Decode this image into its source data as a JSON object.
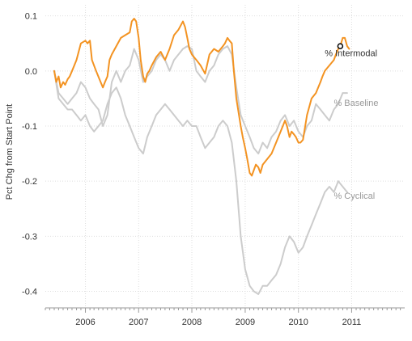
{
  "chart_data": {
    "type": "line",
    "title": "",
    "xlabel": "",
    "ylabel": "Pct Chg from Start Point",
    "xlim": [
      "2005-04-01",
      "2011-12-31"
    ],
    "ylim": [
      -0.43,
      0.12
    ],
    "x_ticks": [
      "2006",
      "2007",
      "2008",
      "2009",
      "2010",
      "2011"
    ],
    "x_tick_dates": [
      "2006-01-01",
      "2007-01-01",
      "2008-01-01",
      "2009-01-01",
      "2010-01-01",
      "2011-01-01"
    ],
    "y_ticks": [
      0.1,
      0.0,
      -0.1,
      -0.2,
      -0.3,
      -0.4
    ],
    "y_tick_labels": [
      "0.1",
      "0.0",
      "-0.1",
      "-0.2",
      "-0.3",
      "-0.4"
    ],
    "grid": true,
    "legend": "none",
    "highlight_point": {
      "series": "% Intermodal",
      "x": "2010-10-15",
      "y": 0.045
    },
    "colors": {
      "% Intermodal": "#f39322",
      "% Baseline": "#cccccc",
      "% Cyclical": "#cccccc",
      "grid": "#dddddd",
      "axis": "#999999"
    },
    "series": [
      {
        "name": "% Intermodal",
        "label_text": "% Intermodal",
        "label_anchor": {
          "x": "2010-07-01",
          "y": 0.027
        },
        "label_color": "#333333",
        "x": [
          "2005-06-01",
          "2005-06-15",
          "2005-07-01",
          "2005-07-15",
          "2005-08-01",
          "2005-08-15",
          "2005-09-01",
          "2005-09-15",
          "2005-10-01",
          "2005-11-01",
          "2005-12-01",
          "2006-01-01",
          "2006-01-15",
          "2006-02-01",
          "2006-02-15",
          "2006-03-15",
          "2006-04-15",
          "2006-05-01",
          "2006-05-15",
          "2006-06-01",
          "2006-06-15",
          "2006-07-01",
          "2006-08-01",
          "2006-09-01",
          "2006-10-01",
          "2006-11-01",
          "2006-11-15",
          "2006-12-01",
          "2006-12-15",
          "2007-01-01",
          "2007-01-15",
          "2007-02-01",
          "2007-02-15",
          "2007-03-01",
          "2007-03-15",
          "2007-04-01",
          "2007-05-01",
          "2007-06-01",
          "2007-07-01",
          "2007-08-01",
          "2007-09-01",
          "2007-10-01",
          "2007-11-01",
          "2007-11-15",
          "2007-12-01",
          "2007-12-15",
          "2008-01-01",
          "2008-02-01",
          "2008-03-01",
          "2008-04-01",
          "2008-05-01",
          "2008-06-01",
          "2008-07-01",
          "2008-08-01",
          "2008-08-15",
          "2008-09-01",
          "2008-09-15",
          "2008-10-01",
          "2008-10-15",
          "2008-11-01",
          "2008-12-01",
          "2008-12-15",
          "2009-01-01",
          "2009-01-15",
          "2009-02-01",
          "2009-02-15",
          "2009-03-01",
          "2009-03-15",
          "2009-04-01",
          "2009-04-15",
          "2009-05-01",
          "2009-06-01",
          "2009-07-01",
          "2009-08-01",
          "2009-09-01",
          "2009-10-01",
          "2009-10-15",
          "2009-11-01",
          "2009-11-15",
          "2009-12-01",
          "2009-12-15",
          "2010-01-01",
          "2010-01-15",
          "2010-02-01",
          "2010-03-01",
          "2010-04-01",
          "2010-05-01",
          "2010-06-01",
          "2010-06-15",
          "2010-07-01",
          "2010-08-01",
          "2010-09-01",
          "2010-09-15",
          "2010-10-01",
          "2010-10-15",
          "2010-11-01",
          "2010-11-15",
          "2010-12-01",
          "2010-12-15"
        ],
        "values": [
          0.0,
          -0.02,
          -0.01,
          -0.03,
          -0.02,
          -0.025,
          -0.015,
          -0.01,
          0.0,
          0.02,
          0.05,
          0.055,
          0.05,
          0.055,
          0.02,
          0.0,
          -0.02,
          -0.03,
          -0.02,
          -0.01,
          0.02,
          0.03,
          0.045,
          0.06,
          0.065,
          0.07,
          0.09,
          0.095,
          0.09,
          0.06,
          0.02,
          -0.01,
          -0.02,
          -0.005,
          0.0,
          0.01,
          0.025,
          0.035,
          0.02,
          0.04,
          0.065,
          0.075,
          0.09,
          0.08,
          0.06,
          0.04,
          0.03,
          0.02,
          0.01,
          -0.005,
          0.03,
          0.04,
          0.035,
          0.045,
          0.05,
          0.06,
          0.055,
          0.05,
          0.0,
          -0.05,
          -0.1,
          -0.12,
          -0.14,
          -0.16,
          -0.185,
          -0.19,
          -0.18,
          -0.17,
          -0.175,
          -0.185,
          -0.17,
          -0.16,
          -0.15,
          -0.13,
          -0.11,
          -0.09,
          -0.1,
          -0.12,
          -0.11,
          -0.115,
          -0.12,
          -0.13,
          -0.13,
          -0.125,
          -0.08,
          -0.05,
          -0.04,
          -0.02,
          -0.01,
          0.0,
          0.01,
          0.02,
          0.03,
          0.04,
          0.045,
          0.06,
          0.06,
          0.045,
          0.04
        ]
      },
      {
        "name": "% Baseline",
        "label_text": "% Baseline",
        "label_anchor": {
          "x": "2010-09-01",
          "y": -0.063
        },
        "label_color": "#999999",
        "x": [
          "2005-06-01",
          "2005-07-01",
          "2005-08-01",
          "2005-09-01",
          "2005-10-01",
          "2005-11-01",
          "2005-12-01",
          "2006-01-01",
          "2006-02-01",
          "2006-03-01",
          "2006-04-01",
          "2006-05-01",
          "2006-06-01",
          "2006-07-01",
          "2006-08-01",
          "2006-09-01",
          "2006-10-01",
          "2006-11-01",
          "2006-12-01",
          "2007-01-01",
          "2007-02-01",
          "2007-03-01",
          "2007-04-01",
          "2007-05-01",
          "2007-06-01",
          "2007-07-01",
          "2007-08-01",
          "2007-09-01",
          "2007-10-01",
          "2007-11-01",
          "2007-12-01",
          "2008-01-01",
          "2008-02-01",
          "2008-03-01",
          "2008-04-01",
          "2008-05-01",
          "2008-06-01",
          "2008-07-01",
          "2008-08-01",
          "2008-09-01",
          "2008-10-01",
          "2008-11-01",
          "2008-12-01",
          "2009-01-01",
          "2009-02-01",
          "2009-03-01",
          "2009-04-01",
          "2009-05-01",
          "2009-06-01",
          "2009-07-01",
          "2009-08-01",
          "2009-09-01",
          "2009-10-01",
          "2009-11-01",
          "2009-12-01",
          "2010-01-01",
          "2010-02-01",
          "2010-03-01",
          "2010-04-01",
          "2010-05-01",
          "2010-06-01",
          "2010-07-01",
          "2010-08-01",
          "2010-09-01",
          "2010-10-01",
          "2010-11-01",
          "2010-12-01"
        ],
        "values": [
          0.0,
          -0.04,
          -0.05,
          -0.06,
          -0.05,
          -0.04,
          -0.02,
          -0.03,
          -0.05,
          -0.06,
          -0.07,
          -0.1,
          -0.08,
          -0.02,
          0.0,
          -0.02,
          0.0,
          0.01,
          0.04,
          0.02,
          -0.02,
          -0.01,
          0.0,
          0.02,
          0.03,
          0.02,
          0.0,
          0.02,
          0.03,
          0.04,
          0.045,
          0.04,
          0.0,
          -0.01,
          -0.02,
          0.0,
          0.01,
          0.03,
          0.04,
          0.045,
          0.03,
          -0.03,
          -0.08,
          -0.1,
          -0.12,
          -0.14,
          -0.15,
          -0.13,
          -0.14,
          -0.12,
          -0.11,
          -0.09,
          -0.08,
          -0.1,
          -0.09,
          -0.11,
          -0.12,
          -0.1,
          -0.09,
          -0.06,
          -0.07,
          -0.08,
          -0.09,
          -0.07,
          -0.06,
          -0.04,
          -0.04
        ]
      },
      {
        "name": "% Cyclical",
        "label_text": "% Cyclical",
        "label_anchor": {
          "x": "2010-09-01",
          "y": -0.232
        },
        "label_color": "#999999",
        "x": [
          "2005-06-01",
          "2005-07-01",
          "2005-08-01",
          "2005-09-01",
          "2005-10-01",
          "2005-11-01",
          "2005-12-01",
          "2006-01-01",
          "2006-02-01",
          "2006-03-01",
          "2006-04-01",
          "2006-05-01",
          "2006-06-01",
          "2006-07-01",
          "2006-08-01",
          "2006-09-01",
          "2006-10-01",
          "2006-11-01",
          "2006-12-01",
          "2007-01-01",
          "2007-02-01",
          "2007-03-01",
          "2007-04-01",
          "2007-05-01",
          "2007-06-01",
          "2007-07-01",
          "2007-08-01",
          "2007-09-01",
          "2007-10-01",
          "2007-11-01",
          "2007-12-01",
          "2008-01-01",
          "2008-02-01",
          "2008-03-01",
          "2008-04-01",
          "2008-05-01",
          "2008-06-01",
          "2008-07-01",
          "2008-08-01",
          "2008-09-01",
          "2008-10-01",
          "2008-11-01",
          "2008-12-01",
          "2009-01-01",
          "2009-02-01",
          "2009-03-01",
          "2009-04-01",
          "2009-05-01",
          "2009-06-01",
          "2009-07-01",
          "2009-08-01",
          "2009-09-01",
          "2009-10-01",
          "2009-11-01",
          "2009-12-01",
          "2010-01-01",
          "2010-02-01",
          "2010-03-01",
          "2010-04-01",
          "2010-05-01",
          "2010-06-01",
          "2010-07-01",
          "2010-08-01",
          "2010-09-01",
          "2010-10-01",
          "2010-11-01",
          "2010-12-01"
        ],
        "values": [
          0.0,
          -0.05,
          -0.06,
          -0.07,
          -0.07,
          -0.08,
          -0.09,
          -0.08,
          -0.1,
          -0.11,
          -0.1,
          -0.09,
          -0.06,
          -0.04,
          -0.03,
          -0.05,
          -0.08,
          -0.1,
          -0.12,
          -0.14,
          -0.15,
          -0.12,
          -0.1,
          -0.08,
          -0.07,
          -0.06,
          -0.07,
          -0.08,
          -0.09,
          -0.1,
          -0.09,
          -0.1,
          -0.1,
          -0.12,
          -0.14,
          -0.13,
          -0.12,
          -0.1,
          -0.09,
          -0.1,
          -0.13,
          -0.2,
          -0.3,
          -0.36,
          -0.39,
          -0.4,
          -0.405,
          -0.39,
          -0.39,
          -0.38,
          -0.37,
          -0.35,
          -0.32,
          -0.3,
          -0.31,
          -0.33,
          -0.32,
          -0.3,
          -0.28,
          -0.26,
          -0.24,
          -0.22,
          -0.21,
          -0.22,
          -0.2,
          -0.21,
          -0.22
        ]
      }
    ]
  }
}
